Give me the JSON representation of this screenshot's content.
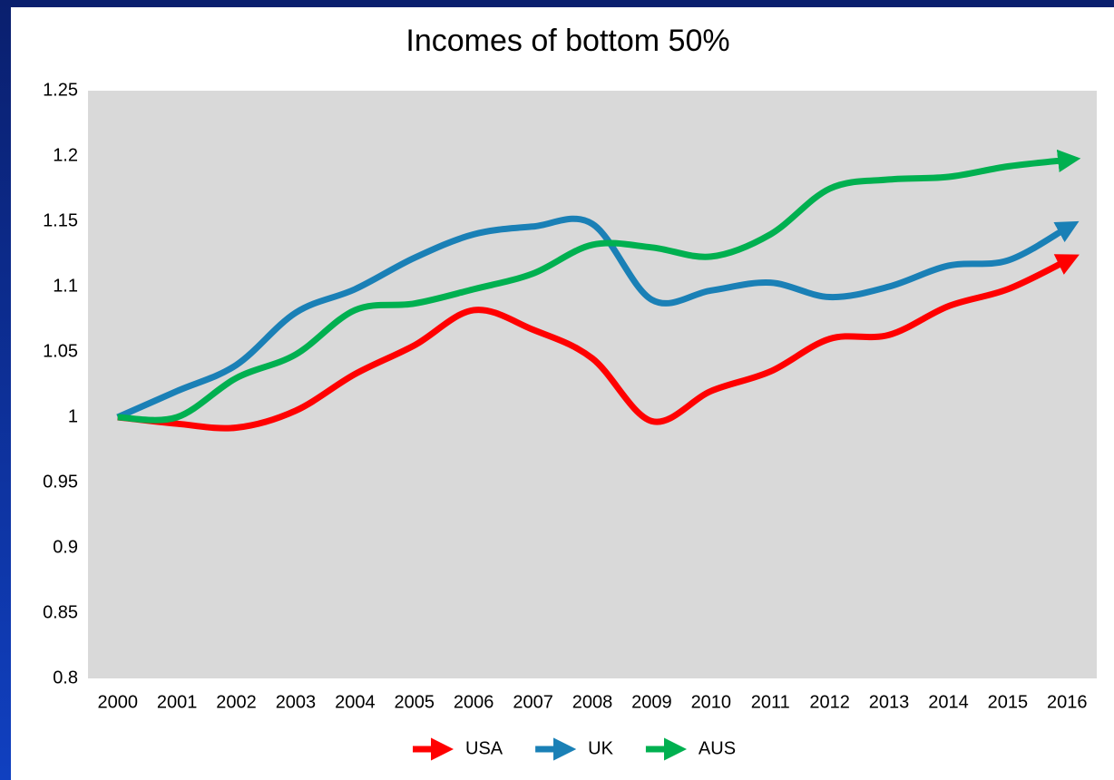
{
  "chart_data": {
    "type": "line",
    "title": "Incomes of bottom 50%",
    "categories": [
      "2000",
      "2001",
      "2002",
      "2003",
      "2004",
      "2005",
      "2006",
      "2007",
      "2008",
      "2009",
      "2010",
      "2011",
      "2012",
      "2013",
      "2014",
      "2015",
      "2016"
    ],
    "series": [
      {
        "name": "USA",
        "color": "#ff0000",
        "values": [
          1.0,
          0.995,
          0.992,
          1.005,
          1.033,
          1.055,
          1.082,
          1.067,
          1.045,
          0.997,
          1.02,
          1.035,
          1.06,
          1.063,
          1.085,
          1.098,
          1.12
        ]
      },
      {
        "name": "UK",
        "color": "#1a80b6",
        "values": [
          1.0,
          1.02,
          1.04,
          1.08,
          1.098,
          1.122,
          1.14,
          1.146,
          1.148,
          1.09,
          1.097,
          1.103,
          1.092,
          1.1,
          1.116,
          1.12,
          1.145
        ]
      },
      {
        "name": "AUS",
        "color": "#00b050",
        "values": [
          1.0,
          1.0,
          1.03,
          1.048,
          1.082,
          1.087,
          1.098,
          1.11,
          1.132,
          1.13,
          1.123,
          1.14,
          1.175,
          1.182,
          1.184,
          1.192,
          1.197
        ]
      }
    ],
    "ylim": [
      0.8,
      1.25
    ],
    "yticks": [
      0.8,
      0.85,
      0.9,
      0.95,
      1,
      1.05,
      1.1,
      1.15,
      1.2,
      1.25
    ],
    "grid": false,
    "smooth": true,
    "legend": "bottom"
  }
}
